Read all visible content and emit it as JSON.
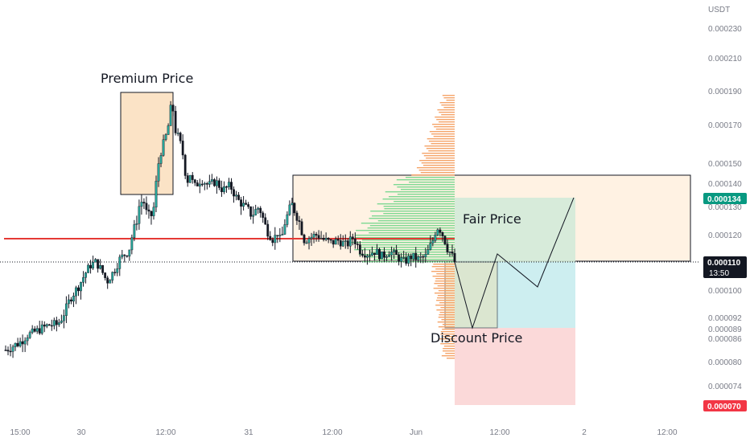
{
  "chart_data": {
    "type": "candlestick",
    "currency": "USDT",
    "ylim": [
      6.6e-05,
      0.00024
    ],
    "y_ticks": [
      "0.000230",
      "0.000210",
      "0.000190",
      "0.000170",
      "0.000150",
      "0.000140",
      "0.000130",
      "0.000120",
      "0.000110",
      "0.000100",
      "0.000092",
      "0.000089",
      "0.000086",
      "0.000080",
      "0.000074",
      "0.000070"
    ],
    "x_ticks": [
      "15:00",
      "30",
      "12:00",
      "31",
      "12:00",
      "Jun",
      "12:00",
      "2",
      "12:00"
    ],
    "price_series": [
      [
        0,
        8.3e-05
      ],
      [
        4,
        8.4e-05
      ],
      [
        8,
        8.5e-05
      ],
      [
        12,
        8.7e-05
      ],
      [
        16,
        8.8e-05
      ],
      [
        20,
        8.9e-05
      ],
      [
        24,
        9e-05
      ],
      [
        28,
        9e-05
      ],
      [
        30,
        9.1e-05
      ],
      [
        33,
        9.4e-05
      ],
      [
        36,
        9.8e-05
      ],
      [
        40,
        0.000101
      ],
      [
        44,
        0.000106
      ],
      [
        47,
        0.000109
      ],
      [
        50,
        0.00011
      ],
      [
        53,
        0.000107
      ],
      [
        56,
        0.000103
      ],
      [
        60,
        0.000107
      ],
      [
        63,
        0.000111
      ],
      [
        66,
        0.000113
      ],
      [
        68,
        0.000114
      ],
      [
        70,
        0.00012
      ],
      [
        72,
        0.000124
      ],
      [
        74,
        0.000131
      ],
      [
        76,
        0.000133
      ],
      [
        78,
        0.000127
      ],
      [
        80,
        0.000126
      ],
      [
        82,
        0.00013
      ],
      [
        84,
        0.000148
      ],
      [
        86,
        0.000157
      ],
      [
        88,
        0.000162
      ],
      [
        90,
        0.00017
      ],
      [
        91,
        0.000178
      ],
      [
        92,
        0.000185
      ],
      [
        93,
        0.000172
      ],
      [
        94,
        0.000166
      ],
      [
        96,
        0.000162
      ],
      [
        98,
        0.000154
      ],
      [
        100,
        0.00014
      ],
      [
        102,
        0.000145
      ],
      [
        104,
        0.000138
      ],
      [
        108,
        0.000142
      ],
      [
        112,
        0.000139
      ],
      [
        116,
        0.000141
      ],
      [
        120,
        0.000137
      ],
      [
        124,
        0.000139
      ],
      [
        128,
        0.000133
      ],
      [
        132,
        0.00013
      ],
      [
        136,
        0.000127
      ],
      [
        140,
        0.00013
      ],
      [
        144,
        0.000122
      ],
      [
        148,
        0.000118
      ],
      [
        150,
        0.000121
      ],
      [
        152,
        0.000117
      ],
      [
        154,
        0.000124
      ],
      [
        158,
        0.000131
      ],
      [
        160,
        0.000128
      ],
      [
        162,
        0.000125
      ],
      [
        165,
        0.000118
      ],
      [
        168,
        0.000119
      ],
      [
        172,
        0.00012
      ],
      [
        176,
        0.000118
      ],
      [
        180,
        0.000117
      ],
      [
        184,
        0.000118
      ],
      [
        188,
        0.000116
      ],
      [
        192,
        0.000119
      ],
      [
        196,
        0.000114
      ],
      [
        200,
        0.000113
      ],
      [
        204,
        0.000114
      ],
      [
        208,
        0.000112
      ],
      [
        212,
        0.000114
      ],
      [
        216,
        0.000112
      ],
      [
        220,
        0.00011
      ],
      [
        224,
        0.000112
      ],
      [
        228,
        0.000111
      ],
      [
        232,
        0.000112
      ],
      [
        234,
        0.000115
      ],
      [
        236,
        0.000118
      ],
      [
        238,
        0.000123
      ],
      [
        240,
        0.000122
      ],
      [
        242,
        0.000119
      ],
      [
        244,
        0.000115
      ],
      [
        246,
        0.000113
      ],
      [
        248,
        0.00011
      ]
    ],
    "key_level": 0.00012,
    "current_price": {
      "label": "0.000110",
      "countdown": "13:50",
      "color": "#131722"
    },
    "tags": [
      {
        "label": "0.000134",
        "color": "#089981"
      },
      {
        "label": "0.000070",
        "color": "#f23645"
      }
    ],
    "annotations": {
      "premium": "Premium Price",
      "fair": "Fair Price",
      "discount": "Discount Price"
    },
    "projection_path": [
      [
        0.000109
      ],
      [
        8.9e-05
      ],
      [
        0.000111
      ],
      [
        0.000102
      ],
      [
        0.000134
      ]
    ],
    "colors": {
      "up": "#26a69a",
      "down": "#131722",
      "level": "#e53935",
      "premium_zone": "#fde8cc",
      "fair_zone": "#fff3e6",
      "target_green": "#cfe9d8",
      "target_blue": "#cdeef0",
      "stop_red": "#fbd9d9",
      "vp_orange": "#f5a56a",
      "vp_green": "#7ed993"
    }
  }
}
